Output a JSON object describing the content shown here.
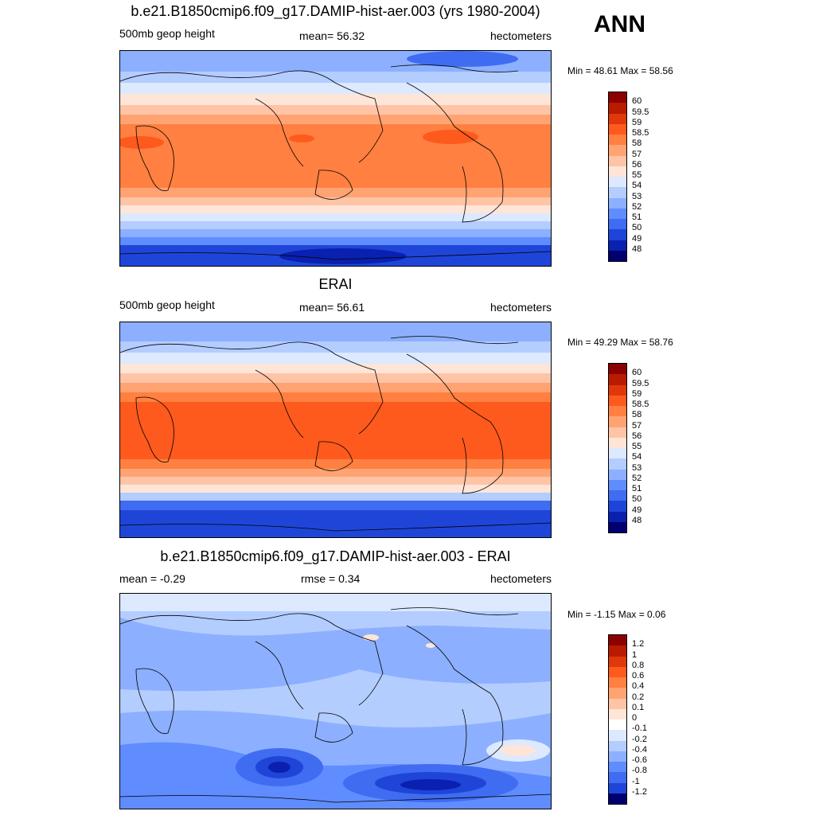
{
  "header": {
    "season": "ANN"
  },
  "panels": [
    {
      "title": "b.e21.B1850cmip6.f09_g17.DAMIP-hist-aer.003 (yrs 1980-2004)",
      "left_label": "500mb geop height",
      "center_label": "mean=  56.32",
      "right_label": "hectometers",
      "minmax": "Min =  48.61 Max =  58.56",
      "colorbar": {
        "labels": [
          "60",
          "59.5",
          "59",
          "58.5",
          "58",
          "57",
          "56",
          "55",
          "54",
          "53",
          "52",
          "51",
          "50",
          "49",
          "48"
        ],
        "colors": [
          "#8b0000",
          "#b91b00",
          "#e0380a",
          "#ff5a1e",
          "#ff8040",
          "#ffa373",
          "#ffc4a5",
          "#fee5d7",
          "#dce9ff",
          "#b4cdff",
          "#8cb0ff",
          "#5f8cff",
          "#3f6cf0",
          "#1f45d8",
          "#0a20b0",
          "#00006e"
        ]
      }
    },
    {
      "title": "ERAI",
      "left_label": "500mb geop height",
      "center_label": "mean=  56.61",
      "right_label": "hectometers",
      "minmax": "Min =  49.29 Max =  58.76",
      "colorbar": {
        "labels": [
          "60",
          "59.5",
          "59",
          "58.5",
          "58",
          "57",
          "56",
          "55",
          "54",
          "53",
          "52",
          "51",
          "50",
          "49",
          "48"
        ],
        "colors": [
          "#8b0000",
          "#b91b00",
          "#e0380a",
          "#ff5a1e",
          "#ff8040",
          "#ffa373",
          "#ffc4a5",
          "#fee5d7",
          "#dce9ff",
          "#b4cdff",
          "#8cb0ff",
          "#5f8cff",
          "#3f6cf0",
          "#1f45d8",
          "#0a20b0",
          "#00006e"
        ]
      }
    },
    {
      "title": "b.e21.B1850cmip6.f09_g17.DAMIP-hist-aer.003 - ERAI",
      "left_label": "mean =  -0.29",
      "center_label": "rmse =   0.34",
      "right_label": "hectometers",
      "minmax": "Min =  -1.15 Max =   0.06",
      "colorbar": {
        "labels": [
          "1.2",
          "1",
          "0.8",
          "0.6",
          "0.4",
          "0.2",
          "0.1",
          "0",
          "-0.1",
          "-0.2",
          "-0.4",
          "-0.6",
          "-0.8",
          "-1",
          "-1.2"
        ],
        "colors": [
          "#8b0000",
          "#b91b00",
          "#e0380a",
          "#ff5a1e",
          "#ff8040",
          "#ffa373",
          "#ffc4a5",
          "#fee5d7",
          "#ffffff",
          "#dce9ff",
          "#b4cdff",
          "#8cb0ff",
          "#5f8cff",
          "#3f6cf0",
          "#1f45d8",
          "#00006e"
        ]
      }
    }
  ]
}
